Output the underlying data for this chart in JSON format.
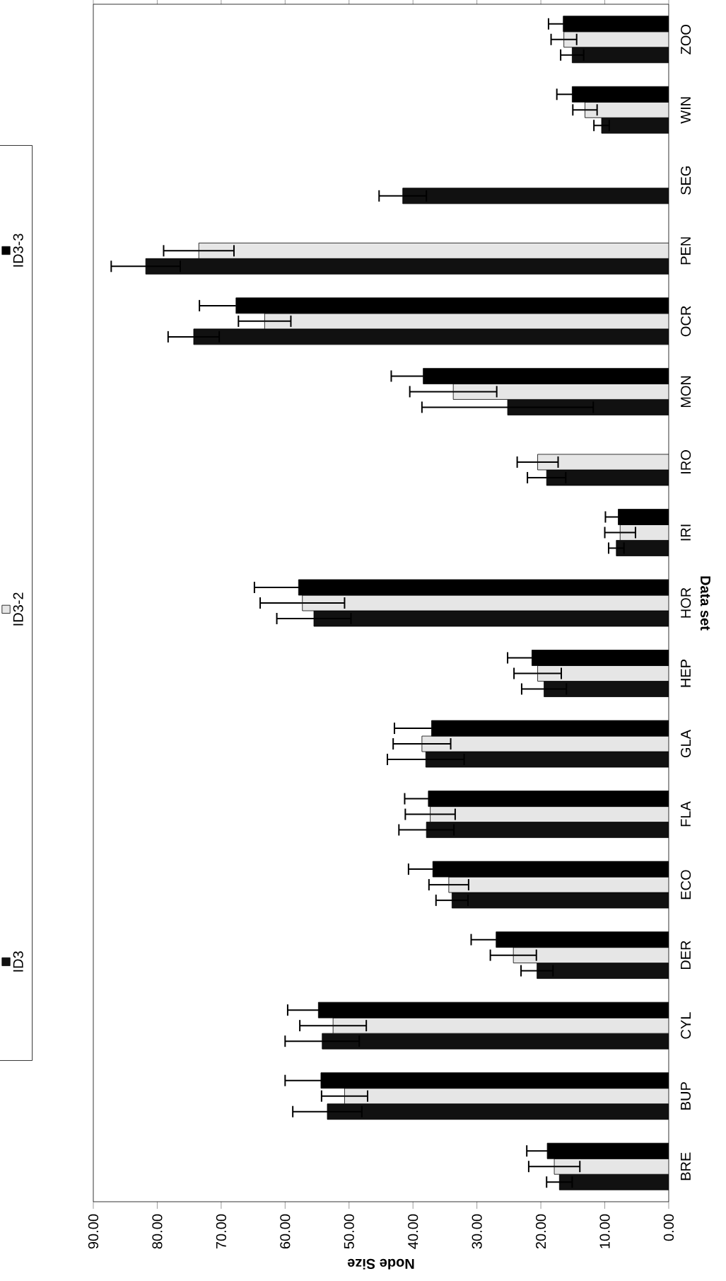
{
  "chart_data": {
    "type": "bar",
    "orientation": "horizontal",
    "xlabel": "Node Size",
    "ylabel": "Data set",
    "categories": [
      "ZOO",
      "WIN",
      "SEG",
      "PEN",
      "OCR",
      "MON",
      "IRO",
      "IRI",
      "HOR",
      "HEP",
      "GLA",
      "FLA",
      "ECO",
      "DER",
      "CYL",
      "BUP",
      "BRE"
    ],
    "series": [
      {
        "name": "ID3",
        "color": "#111111",
        "values": [
          15.1,
          10.5,
          41.6,
          81.8,
          74.3,
          25.2,
          19.1,
          8.2,
          55.5,
          19.5,
          38.0,
          37.9,
          33.9,
          20.6,
          54.2,
          53.4,
          17.1
        ],
        "errors": [
          1.8,
          1.2,
          3.7,
          5.4,
          4.0,
          13.4,
          3.0,
          1.2,
          5.8,
          3.5,
          6.0,
          4.3,
          2.5,
          2.5,
          5.8,
          5.4,
          2.0
        ]
      },
      {
        "name": "ID3-2",
        "color": "#e6e6e6",
        "values": [
          16.4,
          13.1,
          null,
          73.5,
          63.2,
          33.7,
          20.5,
          7.6,
          57.3,
          20.5,
          38.6,
          37.3,
          34.4,
          24.3,
          52.5,
          50.7,
          17.9
        ],
        "errors": [
          2.0,
          1.9,
          null,
          5.5,
          4.1,
          6.8,
          3.2,
          2.4,
          6.6,
          3.7,
          4.5,
          3.9,
          3.1,
          3.6,
          5.2,
          3.6,
          4.0
        ]
      },
      {
        "name": "ID3-3",
        "color": "#000000",
        "values": [
          16.5,
          15.1,
          null,
          null,
          67.7,
          38.4,
          null,
          7.9,
          57.9,
          21.4,
          37.1,
          37.6,
          36.9,
          27.0,
          54.8,
          54.4,
          19.0
        ],
        "errors": [
          2.3,
          2.4,
          null,
          null,
          5.7,
          5.0,
          null,
          2.0,
          6.9,
          3.8,
          5.8,
          3.7,
          3.8,
          3.9,
          4.8,
          5.6,
          3.2
        ]
      }
    ],
    "xlim": [
      90,
      0
    ],
    "xticks": [
      {
        "value": 0,
        "label": "0.00"
      },
      {
        "value": 10,
        "label": "10.00"
      },
      {
        "value": 20,
        "label": "20.00"
      },
      {
        "value": 30,
        "label": "30.00"
      },
      {
        "value": 40,
        "label": "40.00"
      },
      {
        "value": 50,
        "label": "50.00"
      },
      {
        "value": 60,
        "label": "60.00"
      },
      {
        "value": 70,
        "label": "70.00"
      },
      {
        "value": 80,
        "label": "80.00"
      },
      {
        "value": 90,
        "label": "90.00"
      }
    ],
    "legend": "left"
  }
}
